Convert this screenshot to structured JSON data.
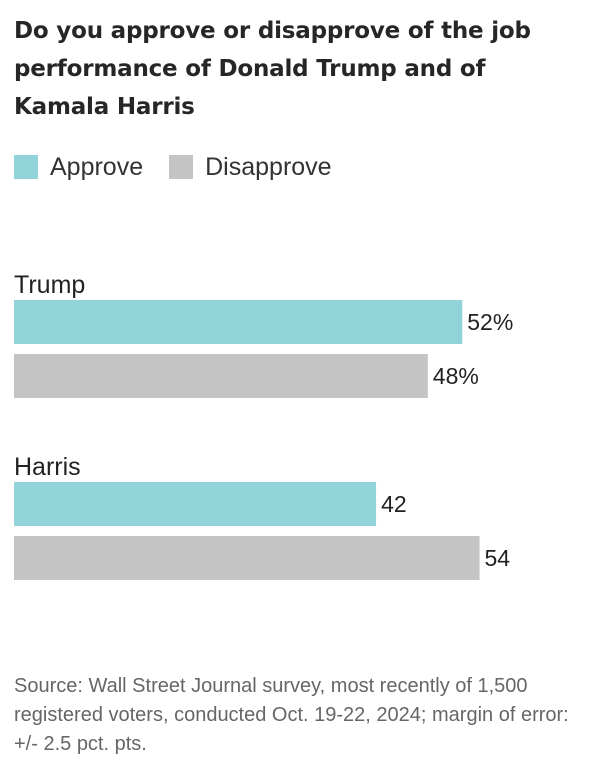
{
  "chart_data": {
    "type": "bar",
    "orientation": "horizontal",
    "title": "Do you approve or disapprove of the job performance of Donald Trump and of Kamala Harris",
    "categories": [
      "Trump",
      "Harris"
    ],
    "series": [
      {
        "name": "Approve",
        "values": [
          52,
          42
        ],
        "labels": [
          "52%",
          "42"
        ],
        "color": "#92d3d9"
      },
      {
        "name": "Disapprove",
        "values": [
          48,
          54
        ],
        "labels": [
          "48%",
          "54"
        ],
        "color": "#c4c4c4"
      }
    ],
    "xlim": [
      0,
      58
    ],
    "grid": false,
    "legend_position": "top-left",
    "source": "Source: Wall Street Journal survey, most recently of 1,500 registered voters, conducted Oct. 19-22, 2024; margin of error: +/- 2.5 pct. pts."
  }
}
